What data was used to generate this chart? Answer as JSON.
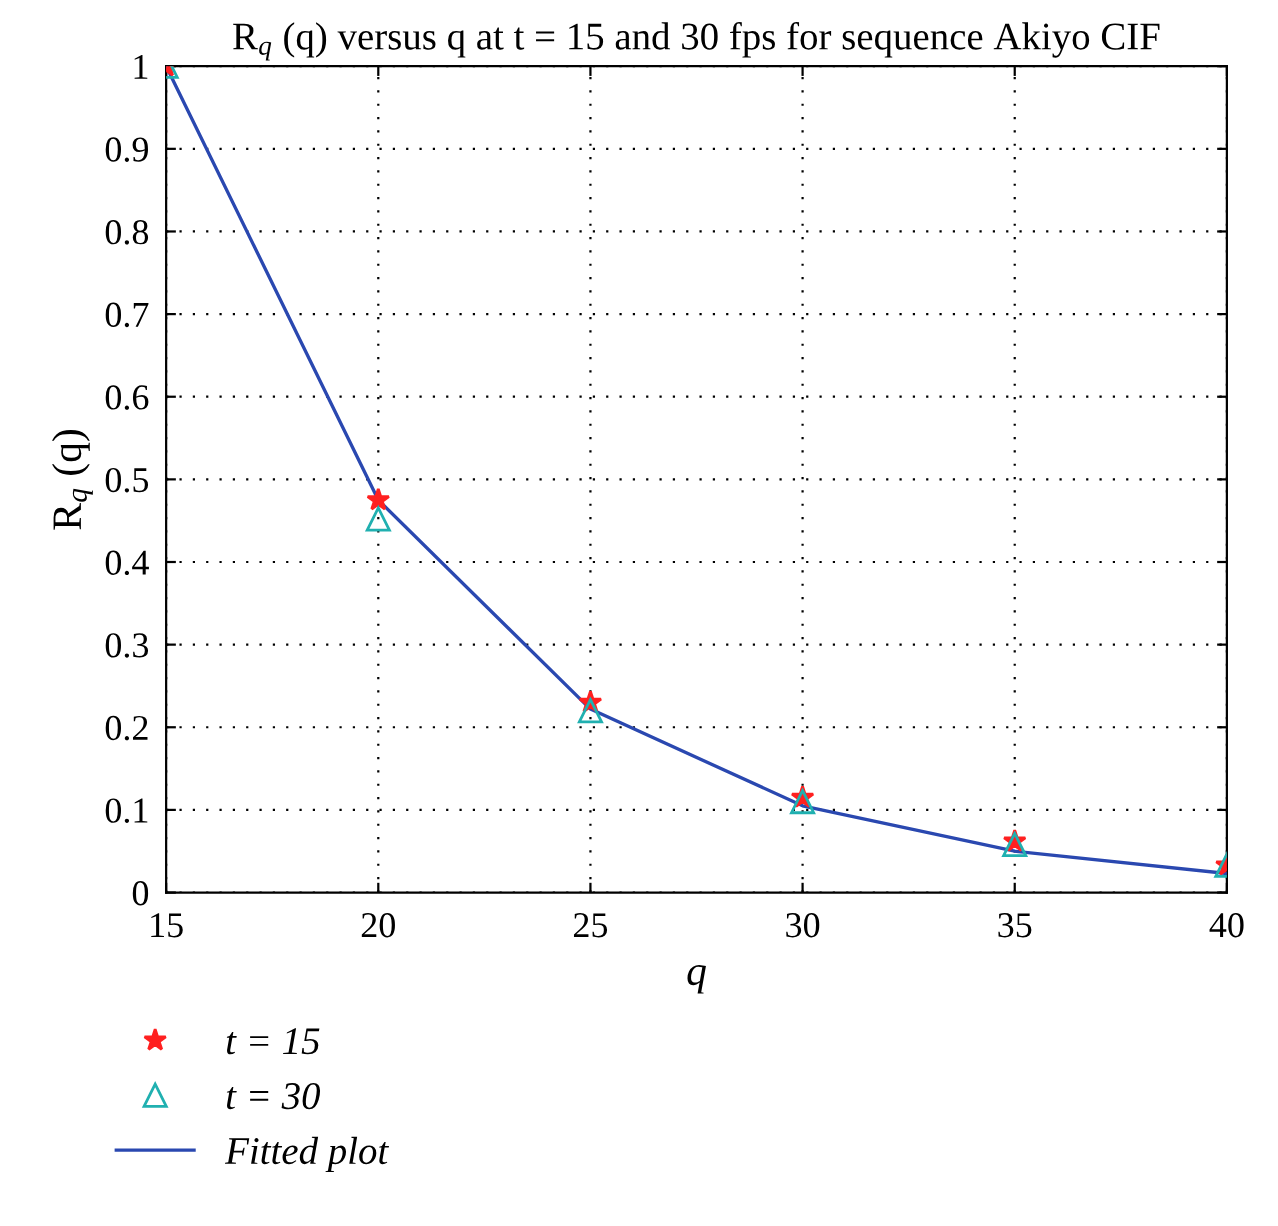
{
  "chart_data": {
    "type": "scatter",
    "title": "R$_{q}$ (q) versus q at t = 15 and 30 fps for sequence Akiyo CIF",
    "xlabel": "q",
    "ylabel": "R$_{q}$ (q)",
    "x": [
      15,
      20,
      25,
      30,
      35,
      40
    ],
    "series": [
      {
        "name": "t = 15",
        "marker": "star",
        "color": "#ff2020",
        "values": [
          1,
          0.475,
          0.23,
          0.115,
          0.062,
          0.033
        ]
      },
      {
        "name": "t = 30",
        "marker": "triangle",
        "color": "#20b0b0",
        "values": [
          1,
          0.452,
          0.22,
          0.11,
          0.058,
          0.033
        ]
      },
      {
        "name": "Fitted plot",
        "type": "line",
        "marker": "none",
        "line_style": "solid",
        "color": "#2a48b0",
        "values": [
          1,
          0.475,
          0.222,
          0.105,
          0.05,
          0.023
        ]
      }
    ],
    "xlim": [
      15,
      40
    ],
    "xticks": [
      15,
      20,
      25,
      30,
      35,
      40
    ],
    "ylim": [
      0,
      1
    ],
    "yticks": [
      0,
      0.1,
      0.2,
      0.3,
      0.4,
      0.5,
      0.6,
      0.7,
      0.8,
      0.9,
      1
    ],
    "grid": true,
    "legend": "bottom left"
  }
}
